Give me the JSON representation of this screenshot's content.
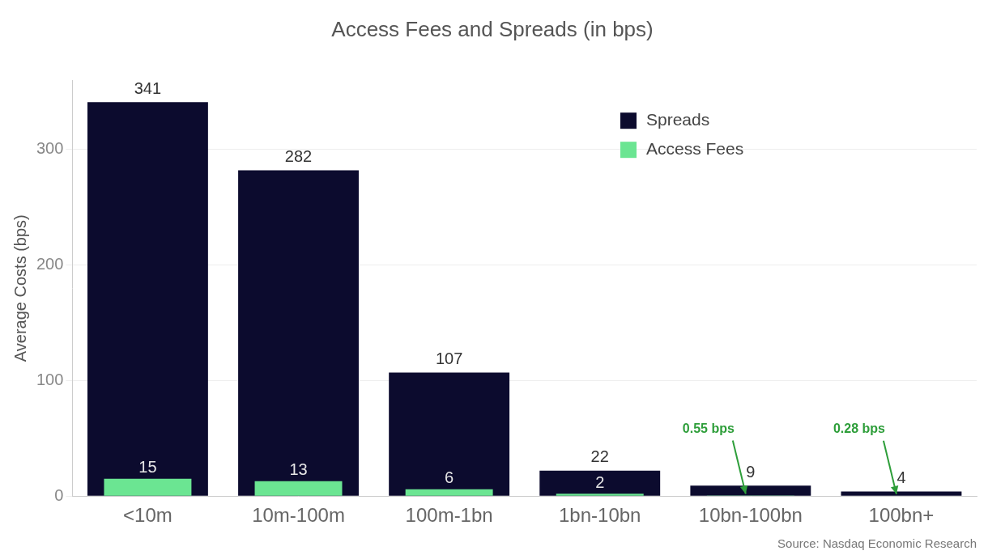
{
  "chart_data": {
    "type": "bar",
    "title": "Access Fees and Spreads (in bps)",
    "y_label": "Average Costs (bps)",
    "source": "Source: Nasdaq Economic Research",
    "categories": [
      "<10m",
      "10m-100m",
      "100m-1bn",
      "1bn-10bn",
      "10bn-100bn",
      "100bn+"
    ],
    "series": [
      {
        "name": "Spreads",
        "color": "#0c0b2e",
        "values": [
          341,
          282,
          107,
          22,
          9,
          4
        ]
      },
      {
        "name": "Access Fees",
        "color": "#6be592",
        "values": [
          15,
          13,
          6,
          2,
          0.55,
          0.28
        ],
        "value_labels": [
          "15",
          "13",
          "6",
          "2",
          "0.55 bps",
          "0.28 bps"
        ]
      }
    ],
    "ylim": [
      0,
      360
    ],
    "yticks": [
      0,
      100,
      200,
      300
    ],
    "grid": true,
    "legend": "upper right",
    "data_labels": true
  }
}
